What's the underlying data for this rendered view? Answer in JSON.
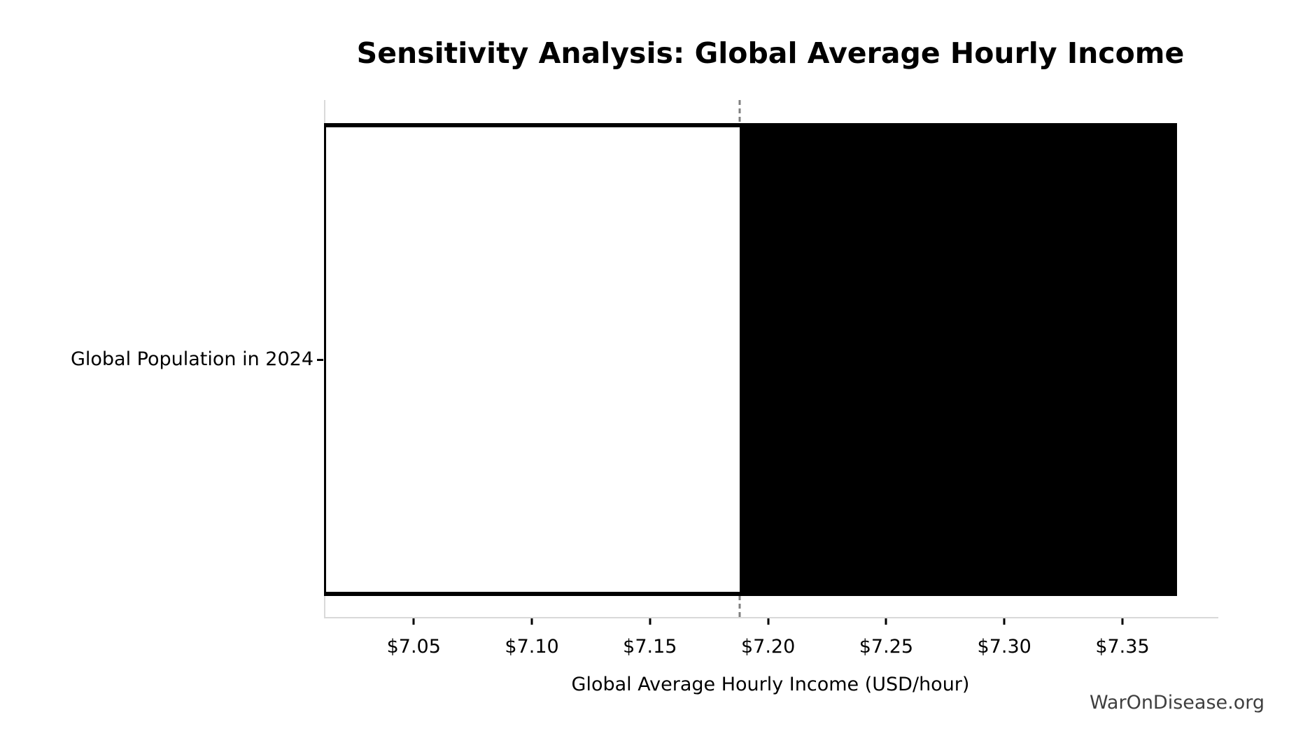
{
  "title": "Sensitivity Analysis: Global Average Hourly Income",
  "watermark": "WarOnDisease.org",
  "axes": {
    "xlabel": "Global Average Hourly Income (USD/hour)",
    "y_category": "Global Population in 2024"
  },
  "chart_data": {
    "type": "bar",
    "orientation": "horizontal",
    "title": "Sensitivity Analysis: Global Average Hourly Income",
    "xlabel": "Global Average Hourly Income (USD/hour)",
    "ylabel": "",
    "categories": [
      "Global Population in 2024"
    ],
    "xlim": [
      7.012,
      7.39
    ],
    "grid": false,
    "legend": null,
    "x_ticks": [
      {
        "value": 7.05,
        "label": "$7.05"
      },
      {
        "value": 7.1,
        "label": "$7.10"
      },
      {
        "value": 7.15,
        "label": "$7.15"
      },
      {
        "value": 7.2,
        "label": "$7.20"
      },
      {
        "value": 7.25,
        "label": "$7.25"
      },
      {
        "value": 7.3,
        "label": "$7.30"
      },
      {
        "value": 7.35,
        "label": "$7.35"
      }
    ],
    "baseline": {
      "value": 7.188,
      "style": "dashed",
      "color": "#808080"
    },
    "segments": [
      {
        "name": "low-to-baseline",
        "start": 7.012,
        "end": 7.188,
        "fill": "#ffffff",
        "edge_color": "#000000"
      },
      {
        "name": "baseline-to-high",
        "start": 7.188,
        "end": 7.373,
        "fill": "#000000",
        "edge_color": "#000000"
      }
    ]
  },
  "colors": {
    "spine": "#d9d9d9",
    "tick": "#000000",
    "text": "#000000",
    "watermark": "#3f3f3f",
    "background": "#ffffff"
  }
}
